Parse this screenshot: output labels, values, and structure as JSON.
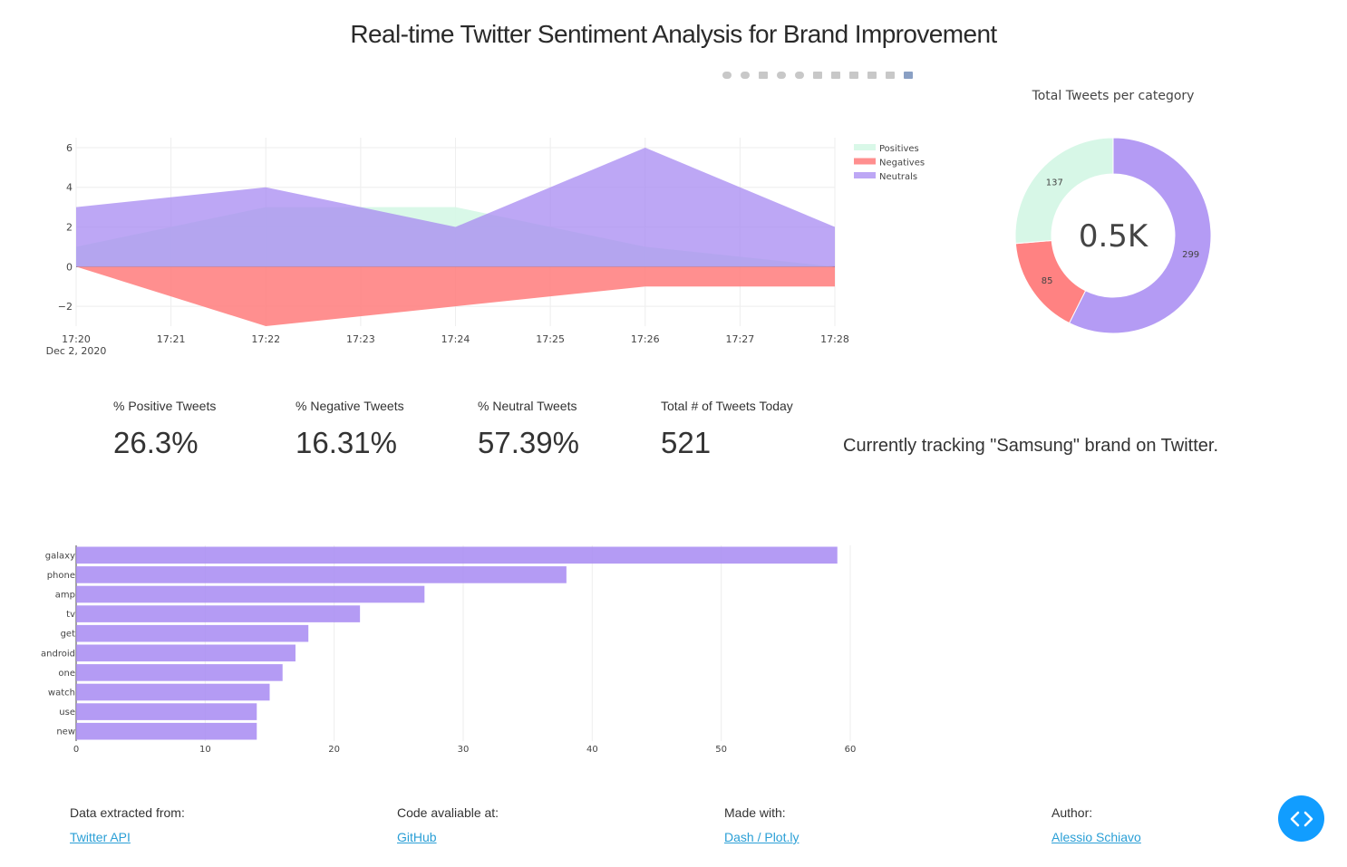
{
  "header": {
    "title": "Real-time Twitter Sentiment Analysis for Brand Improvement"
  },
  "modebar": {
    "icons": [
      "camera-icon",
      "zoom-icon",
      "pan-icon",
      "zoom-in-icon",
      "zoom-out-icon",
      "autoscale-icon",
      "home-icon",
      "spike-lines-icon",
      "hover-closest-icon",
      "hover-compare-icon",
      "plotly-logo-icon"
    ]
  },
  "colors": {
    "positive": "#d5f7e6",
    "negative": "#ff7b7b",
    "neutral": "#a78af2",
    "link": "#2a9fd6",
    "fab": "#119dff"
  },
  "chart_data": [
    {
      "type": "area",
      "x": [
        "17:20",
        "17:22",
        "17:24",
        "17:26",
        "17:28"
      ],
      "xticks": [
        "17:20",
        "17:21",
        "17:22",
        "17:23",
        "17:24",
        "17:25",
        "17:26",
        "17:27",
        "17:28"
      ],
      "xdate": "Dec 2, 2020",
      "ylim": [
        -3,
        6.5
      ],
      "yticks": [
        6,
        4,
        2,
        0,
        -2
      ],
      "series": [
        {
          "name": "Positives",
          "values": [
            1,
            3,
            3,
            1,
            0
          ]
        },
        {
          "name": "Negatives",
          "values": [
            0,
            -3,
            -2,
            -1,
            -1
          ]
        },
        {
          "name": "Neutrals",
          "values": [
            3,
            4,
            2,
            6,
            2
          ]
        }
      ]
    },
    {
      "type": "pie",
      "title": "Total Tweets per category",
      "center_label": "0.5K",
      "slices": [
        {
          "name": "Neutrals",
          "value": 299
        },
        {
          "name": "Negatives",
          "value": 85
        },
        {
          "name": "Positives",
          "value": 137
        }
      ]
    },
    {
      "type": "bar",
      "orientation": "horizontal",
      "categories": [
        "galaxy",
        "phone",
        "amp",
        "tv",
        "get",
        "android",
        "one",
        "watch",
        "use",
        "new"
      ],
      "values": [
        59,
        38,
        27,
        22,
        18,
        17,
        16,
        15,
        14,
        14
      ],
      "xticks": [
        0,
        10,
        20,
        30,
        40,
        50,
        60
      ],
      "xlim": [
        0,
        60
      ]
    }
  ],
  "stats": [
    {
      "label": "% Positive Tweets",
      "value": "26.3%"
    },
    {
      "label": "% Negative Tweets",
      "value": "16.31%"
    },
    {
      "label": "% Neutral Tweets",
      "value": "57.39%"
    },
    {
      "label": "Total # of Tweets Today",
      "value": "521"
    }
  ],
  "tracking_text": "Currently tracking \"Samsung\" brand on Twitter.",
  "footer": [
    {
      "label": "Data extracted from:",
      "link": "Twitter API"
    },
    {
      "label": "Code avaliable at:",
      "link": "GitHub"
    },
    {
      "label": "Made with:",
      "link": "Dash / Plot.ly"
    },
    {
      "label": "Author:",
      "link": "Alessio Schiavo"
    }
  ]
}
